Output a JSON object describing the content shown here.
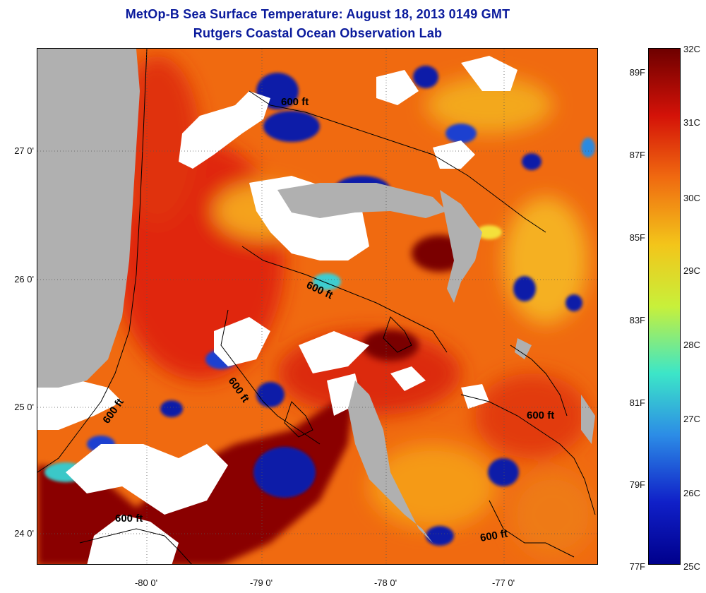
{
  "title": "MetOp-B Sea Surface Temperature:  August 18, 2013 0149 GMT",
  "subtitle": "Rutgers Coastal Ocean Observation Lab",
  "axes": {
    "y_ticks": [
      "27 0'",
      "26 0'",
      "25 0'",
      "24 0'"
    ],
    "x_ticks": [
      "-80 0'",
      "-79 0'",
      "-78 0'",
      "-77 0'"
    ]
  },
  "contour_labels": [
    "600 ft",
    "600 ft",
    "600 ft",
    "600 ft",
    "600 ft",
    "600 ft",
    "600 ft"
  ],
  "colorbar": {
    "fahrenheit": [
      "89F",
      "87F",
      "85F",
      "83F",
      "81F",
      "79F",
      "77F"
    ],
    "celsius": [
      "32C",
      "31C",
      "30C",
      "29C",
      "28C",
      "27C",
      "26C",
      "25C"
    ],
    "colors": [
      "#6e0000",
      "#d41208",
      "#f06a10",
      "#f3c51a",
      "#c8f03a",
      "#3ce6c8",
      "#2c8ce6",
      "#1020c8",
      "#00008c"
    ]
  },
  "map_colors": {
    "land": "#b0b0b0",
    "cloud": "#ffffff",
    "warm_base": "#f06a10",
    "hot": "#7a0000",
    "cool": "#0b1aa8"
  }
}
